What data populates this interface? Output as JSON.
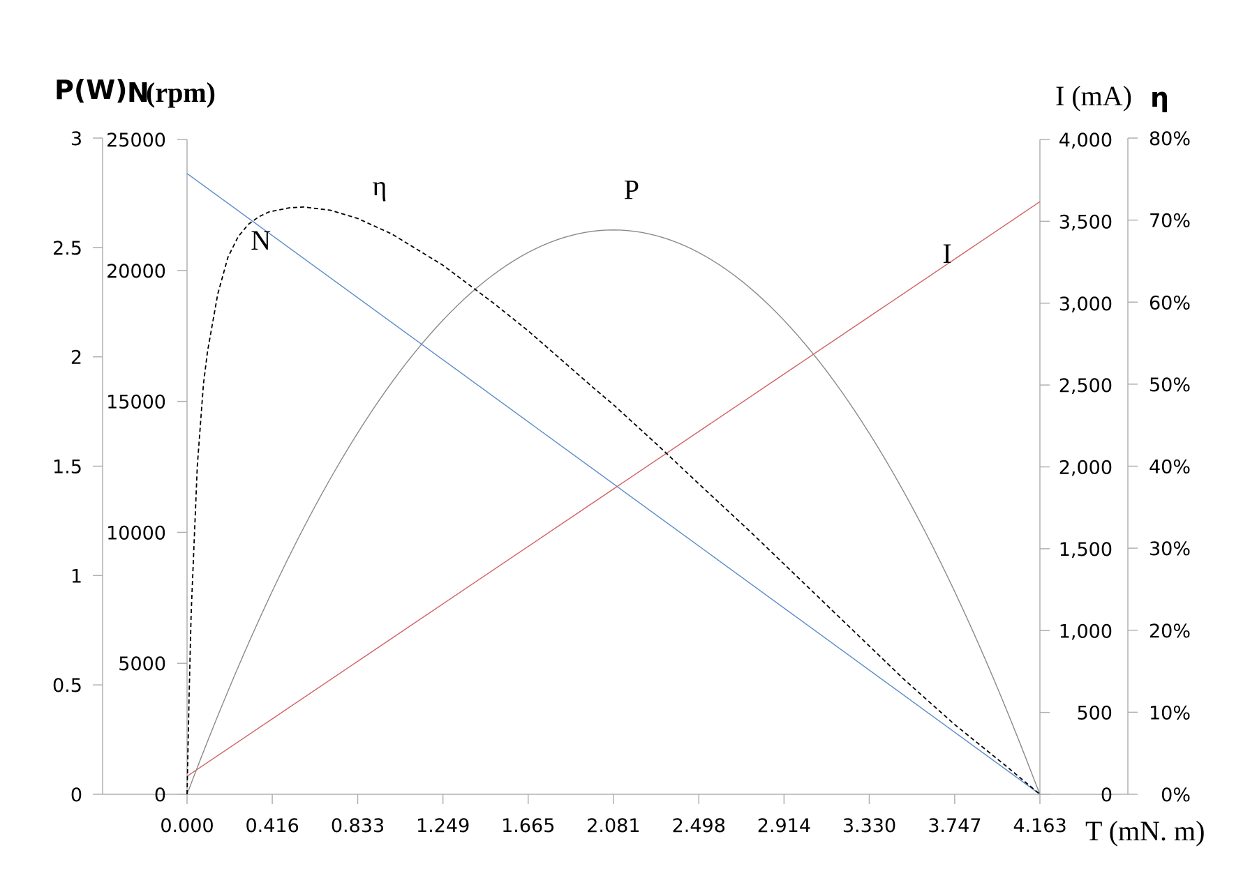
{
  "chart_data": {
    "type": "line",
    "x": {
      "label": "T (mN. m)",
      "ticks": [
        "0.000",
        "0.416",
        "0.833",
        "1.249",
        "1.665",
        "2.081",
        "2.498",
        "2.914",
        "3.330",
        "3.747",
        "4.163"
      ],
      "range": [
        0,
        4.163
      ]
    },
    "y_axes": {
      "power": {
        "ticks": [
          "0",
          "0.5",
          "1",
          "1.5",
          "2",
          "2.5",
          "3"
        ],
        "range": [
          0,
          3
        ]
      },
      "speed": {
        "ticks": [
          "0",
          "5000",
          "10000",
          "15000",
          "20000",
          "25000"
        ],
        "range": [
          0,
          25000
        ]
      },
      "current": {
        "label": "I (mA)",
        "ticks": [
          "0",
          "500",
          "1,000",
          "1,500",
          "2,000",
          "2,500",
          "3,000",
          "3,500",
          "4,000"
        ],
        "range": [
          0,
          4000
        ]
      },
      "efficiency": {
        "label": "η",
        "ticks": [
          "0%",
          "10%",
          "20%",
          "30%",
          "40%",
          "50%",
          "60%",
          "70%",
          "80%"
        ],
        "range": [
          0,
          80
        ]
      }
    },
    "left_title": {
      "part1": "P(W)",
      "part2": "N",
      "part3": "(rpm)"
    },
    "series": [
      {
        "name": "N",
        "axis": "speed",
        "color": "#5b8cc9",
        "style": "solid",
        "points": [
          [
            0,
            23700
          ],
          [
            4.163,
            0
          ]
        ]
      },
      {
        "name": "I",
        "axis": "current",
        "color": "#d25f63",
        "style": "solid",
        "points": [
          [
            0,
            110
          ],
          [
            4.163,
            3620
          ]
        ]
      },
      {
        "name": "P",
        "axis": "power",
        "color": "#8a8a8a",
        "style": "solid",
        "model": "parabola",
        "peak": [
          2.081,
          2.58
        ]
      },
      {
        "name": "η",
        "axis": "efficiency",
        "color": "#000000",
        "style": "dashed",
        "points": [
          [
            0.0,
            0.0
          ],
          [
            0.01,
            12.0
          ],
          [
            0.02,
            22.0
          ],
          [
            0.05,
            40.0
          ],
          [
            0.08,
            50.0
          ],
          [
            0.1,
            54.0
          ],
          [
            0.15,
            61.0
          ],
          [
            0.2,
            65.5
          ],
          [
            0.25,
            68.0
          ],
          [
            0.3,
            69.5
          ],
          [
            0.35,
            70.4
          ],
          [
            0.4,
            71.0
          ],
          [
            0.5,
            71.5
          ],
          [
            0.57,
            71.6
          ],
          [
            0.7,
            71.2
          ],
          [
            0.833,
            70.2
          ],
          [
            1.0,
            68.3
          ],
          [
            1.249,
            64.5
          ],
          [
            1.5,
            59.8
          ],
          [
            1.665,
            56.5
          ],
          [
            2.0,
            49.2
          ],
          [
            2.081,
            47.5
          ],
          [
            2.3,
            42.5
          ],
          [
            2.5,
            37.8
          ],
          [
            2.75,
            32.0
          ],
          [
            3.0,
            26.0
          ],
          [
            3.25,
            20.0
          ],
          [
            3.5,
            14.0
          ],
          [
            3.747,
            8.5
          ],
          [
            4.0,
            3.4
          ],
          [
            4.163,
            0.0
          ]
        ]
      }
    ],
    "curve_labels": [
      {
        "text": "N",
        "series": "N"
      },
      {
        "text": "η",
        "series": "η"
      },
      {
        "text": "P",
        "series": "P"
      },
      {
        "text": "I",
        "series": "I"
      }
    ]
  }
}
